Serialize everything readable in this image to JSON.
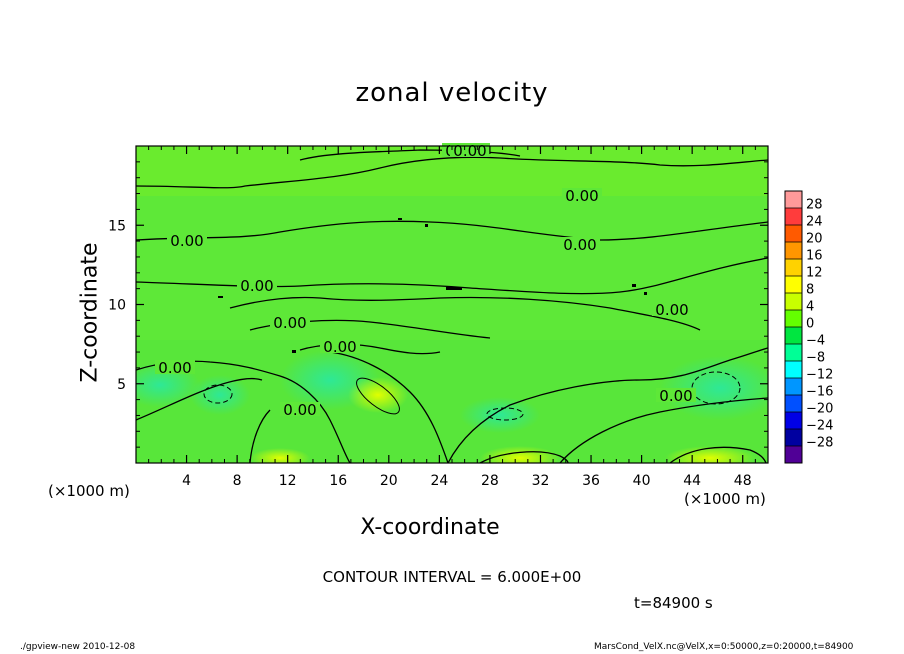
{
  "chart_data": {
    "type": "heatmap",
    "title": "zonal velocity",
    "xlabel": "X-coordinate",
    "ylabel": "Z-coordinate",
    "x_unit": "(×1000 m)",
    "y_unit": "(×1000 m)",
    "xlim": [
      0,
      50
    ],
    "ylim": [
      0,
      20
    ],
    "x_ticks": [
      4,
      8,
      12,
      16,
      20,
      24,
      28,
      32,
      36,
      40,
      44,
      48
    ],
    "y_ticks": [
      5,
      10,
      15
    ],
    "colorbar": {
      "levels": [
        28,
        24,
        20,
        16,
        12,
        8,
        4,
        0,
        -4,
        -8,
        -12,
        -16,
        -20,
        -24,
        -28
      ],
      "colors": [
        "#ff9a9a",
        "#ff3c3c",
        "#ff5a00",
        "#ff9600",
        "#ffd200",
        "#ffff00",
        "#c8ff00",
        "#64ff00",
        "#00e640",
        "#00ff96",
        "#00ffff",
        "#0096ff",
        "#0050ff",
        "#0000e6",
        "#0000a0",
        "#500096"
      ]
    },
    "contour_interval": "CONTOUR INTERVAL = 6.000E+00",
    "contour_labels": [
      "0.00",
      "0.00",
      "0.00",
      "0.00",
      "0.00",
      "0.00",
      "0.00",
      "0.00",
      "0.00",
      "0.00",
      "0.00",
      "0.00"
    ]
  },
  "time_label": "t=84900 s",
  "footer": {
    "left": "./gpview-new   2010-12-08",
    "right": "MarsCond_VelX.nc@VelX,x=0:50000,z=0:20000,t=84900"
  }
}
